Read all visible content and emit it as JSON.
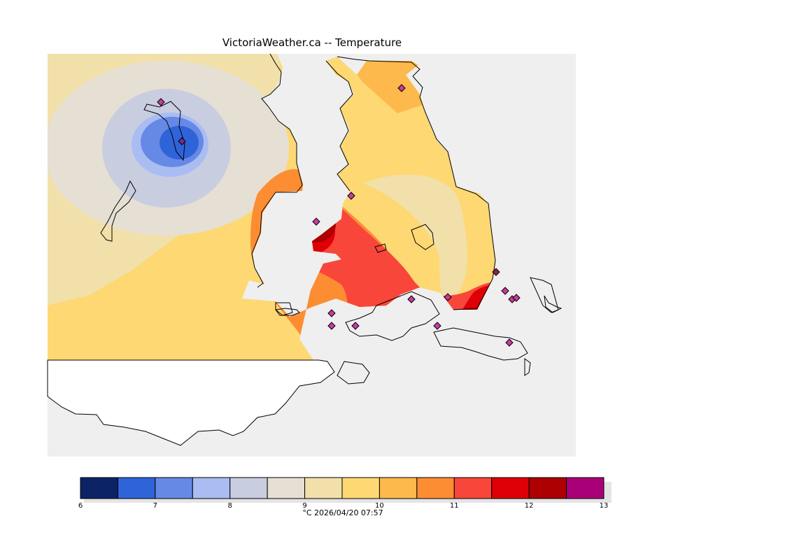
{
  "title": "VictoriaWeather.ca -- Temperature",
  "timestamp": "°C  2026/04/20 07:57",
  "legend": {
    "unit": "°C",
    "min": 6,
    "max": 13,
    "tick_labels": [
      "6",
      "7",
      "8",
      "9",
      "10",
      "11",
      "12",
      "13"
    ],
    "colors": [
      "#0c2465",
      "#2f63d8",
      "#6689e6",
      "#a9bdf3",
      "#c9cde0",
      "#e6dfd3",
      "#f2e0aa",
      "#fdd873",
      "#fdb94c",
      "#fc8d33",
      "#f8463a",
      "#de0006",
      "#ad0003",
      "#aa0077"
    ]
  },
  "map": {
    "colors": {
      "background": "#efefef",
      "land_outside": "#ffffff",
      "coast": "#000000",
      "station": "#cc3aa0"
    },
    "station_count": 16
  }
}
